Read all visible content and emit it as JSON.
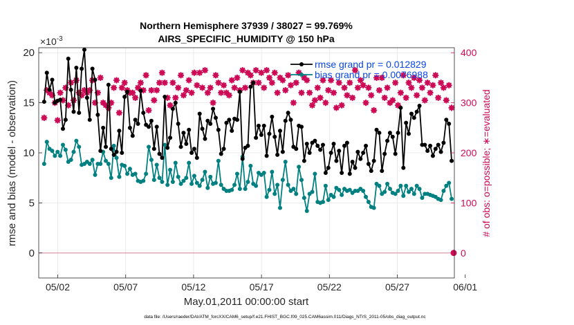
{
  "chart_data": {
    "type": "line",
    "title": "Northern Hemisphere 37939 / 38027 = 99.769%",
    "subtitle": "AIRS_SPECIFIC_HUMIDITY @ 150 hPa",
    "xlabel": "May.01,2011 00:00:00 start",
    "ylabel_left": "rmse and bias (model - observation)",
    "ylabel_right": "# of obs: o=possible; ∗=evaluated",
    "y_exponent": "×10",
    "y_exponent_power": "-3",
    "footer": "data file: /Users/raeder/DAI/ATM_forcXX/CAM6_setup/f.e21.FHIST_BGC.f09_025.CAM6assim.011/Diags_NTrS_2011-05/obs_diag_output.nc",
    "xlim": [
      0.6,
      31.2
    ],
    "ylim_left": [
      -2.5,
      20.5
    ],
    "ylim_right": [
      -50,
      410
    ],
    "x_ticks": [
      2,
      7,
      12,
      17,
      22,
      27,
      32
    ],
    "x_tick_labels": [
      "05/02",
      "05/07",
      "05/12",
      "05/17",
      "05/22",
      "05/27",
      "06/01"
    ],
    "y_ticks_left": [
      0,
      5,
      10,
      15,
      20
    ],
    "y_tick_labels_left": [
      "0",
      "5",
      "10",
      "15",
      "20"
    ],
    "y_ticks_right": [
      0,
      100,
      200,
      300,
      400
    ],
    "y_tick_labels_right": [
      "0",
      "100",
      "200",
      "300",
      "400"
    ],
    "grid": true,
    "legend_position": "top-right",
    "colors": {
      "rmse": "#000000",
      "bias": "#008080",
      "obs": "#cc0a55",
      "zero": "#e0a0b0",
      "legend_text": "#0a46e6"
    },
    "series": [
      {
        "name": "rmse grand pr = 0.012829",
        "axis": "left",
        "values": [
          15.1,
          18.0,
          16.3,
          17.3,
          15.0,
          15.2,
          15.3,
          12.4,
          13.3,
          19.4,
          16.3,
          14.1,
          18.5,
          14.0,
          18.4,
          20.3,
          15.5,
          13.3,
          18.4,
          17.3,
          13.8,
          10.2,
          12.5,
          10.6,
          16.8,
          10.4,
          9.8,
          10.1,
          12.2,
          10.0,
          15.6,
          16.1,
          12.5,
          11.7,
          13.3,
          12.9,
          16.2,
          14.0,
          12.8,
          12.6,
          13.2,
          10.4,
          12.6,
          9.9,
          9.5,
          15.6,
          10.5,
          11.5,
          14.4,
          15.0,
          12.9,
          10.6,
          12.0,
          10.9,
          12.3,
          10.0,
          10.4,
          9.5,
          13.9,
          12.4,
          11.4,
          13.2,
          12.9,
          14.4,
          13.5,
          12.3,
          9.9,
          10.4,
          13.0,
          13.3,
          12.2,
          13.4,
          13.3,
          16.1,
          9.4,
          10.5,
          10.7,
          16.6,
          17.0,
          11.5,
          12.7,
          11.8,
          12.7,
          9.7,
          11.9,
          13.6,
          11.6,
          9.8,
          12.2,
          10.1,
          13.2,
          14.0,
          13.3,
          10.6,
          10.4,
          12.7,
          12.6,
          9.2,
          10.9,
          10.0,
          11.0,
          11.2,
          10.7,
          10.3,
          10.8,
          8.0,
          8.5,
          10.0,
          10.9,
          9.2,
          10.2,
          8.0,
          10.7,
          11.0,
          7.9,
          9.1,
          8.5,
          10.1,
          9.4,
          10.0,
          10.7,
          8.9,
          8.2,
          9.2,
          12.3,
          12.0,
          8.2,
          9.9,
          11.2,
          12.0,
          11.6,
          9.9,
          12.0,
          14.5,
          8.5,
          13.0,
          11.9,
          13.9,
          13.5,
          14.1,
          14.7,
          10.8,
          10.8,
          10.2,
          10.7,
          9.7,
          10.4,
          10.8,
          10.1,
          11.0,
          13.3,
          12.9,
          9.2
        ]
      },
      {
        "name": "bias grand pr = 0.0076988",
        "axis": "left",
        "values": [
          8.9,
          11.1,
          10.4,
          10.2,
          9.7,
          10.1,
          9.7,
          10.8,
          10.3,
          9.1,
          9.3,
          10.1,
          11.2,
          10.6,
          8.8,
          8.9,
          9.1,
          8.9,
          9.3,
          7.8,
          8.9,
          8.9,
          10.1,
          9.2,
          8.9,
          7.5,
          10.7,
          9.5,
          7.6,
          8.8,
          8.7,
          7.9,
          8.4,
          7.8,
          7.9,
          7.2,
          7.1,
          7.2,
          7.9,
          10.6,
          9.3,
          7.3,
          8.8,
          7.5,
          7.1,
          10.8,
          6.8,
          8.3,
          7.1,
          9.0,
          7.6,
          6.9,
          7.2,
          7.5,
          9.0,
          6.9,
          7.7,
          7.0,
          6.7,
          7.3,
          8.1,
          6.5,
          7.6,
          6.9,
          7.0,
          9.2,
          6.8,
          6.4,
          6.2,
          6.2,
          6.3,
          6.8,
          7.9,
          6.4,
          9.6,
          6.4,
          7.1,
          8.7,
          6.9,
          6.7,
          8.0,
          7.8,
          8.0,
          5.6,
          6.3,
          8.1,
          5.9,
          6.8,
          4.5,
          7.3,
          9.1,
          6.8,
          6.2,
          6.4,
          5.9,
          8.6,
          7.3,
          5.5,
          4.2,
          5.9,
          6.1,
          7.9,
          5.1,
          5.0,
          5.1,
          6.7,
          5.3,
          5.8,
          5.6,
          6.5,
          6.3,
          5.8,
          6.4,
          6.2,
          6.3,
          6.0,
          6.2,
          6.2,
          6.4,
          6.2,
          5.6,
          5.1,
          4.6,
          4.5,
          6.9,
          6.7,
          5.9,
          6.1,
          6.9,
          6.4,
          6.0,
          5.9,
          6.2,
          6.7,
          5.7,
          6.7,
          6.1,
          6.4,
          5.9,
          6.7,
          6.4,
          5.5,
          5.9,
          5.9,
          5.8,
          5.7,
          5.6,
          5.4,
          5.3,
          6.2,
          6.7,
          7.0,
          5.4
        ]
      },
      {
        "name": "obs evaluated",
        "axis": "right",
        "values": [
          270,
          325,
          320,
          315,
          300,
          265,
          320,
          305,
          330,
          295,
          340,
          305,
          345,
          320,
          315,
          325,
          320,
          325,
          345,
          300,
          320,
          350,
          300,
          295,
          290,
          300,
          330,
          345,
          280,
          330,
          340,
          325,
          320,
          320,
          310,
          330,
          340,
          325,
          355,
          285,
          325,
          305,
          325,
          340,
          360,
          340,
          310,
          295,
          340,
          310,
          330,
          355,
          315,
          325,
          345,
          320,
          360,
          335,
          360,
          330,
          365,
          320,
          330,
          300,
          355,
          340,
          320,
          335,
          320,
          315,
          345,
          330,
          350,
          325,
          365,
          330,
          360,
          355,
          340,
          365,
          340,
          360,
          330,
          365,
          350,
          340,
          360,
          320,
          350,
          345,
          325,
          355,
          335,
          300,
          340,
          360,
          320,
          350,
          345,
          320,
          295,
          305,
          330,
          310,
          345,
          300,
          325,
          345,
          320,
          290,
          340,
          295,
          330,
          315,
          340,
          310,
          365,
          330,
          345,
          335,
          300,
          330,
          315,
          285,
          350,
          325,
          350,
          310,
          330,
          300,
          305,
          340,
          295,
          320,
          355,
          310,
          340,
          330,
          350,
          315,
          345,
          330,
          305,
          340,
          320,
          335,
          355,
          310,
          340,
          330,
          305,
          335,
          290
        ]
      }
    ]
  }
}
